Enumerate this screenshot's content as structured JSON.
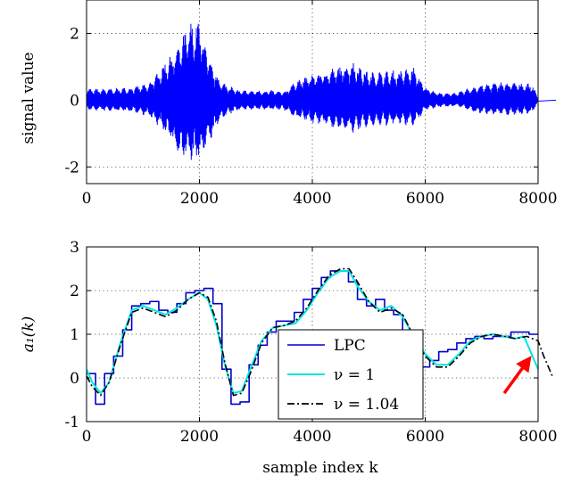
{
  "chart_data": [
    {
      "type": "line",
      "ylabel": "signal value",
      "xlim": [
        0,
        8000
      ],
      "ylim": [
        -2.5,
        3
      ],
      "xticks": [
        "0",
        "2000",
        "4000",
        "6000",
        "8000"
      ],
      "yticks": [
        "-2",
        "0",
        "2"
      ],
      "grid": true,
      "vline_x": 8000,
      "color": "#0000ff",
      "envelope": {
        "x": [
          0,
          400,
          800,
          1100,
          1400,
          1600,
          1800,
          1900,
          2000,
          2200,
          2400,
          2700,
          3000,
          3300,
          3500,
          3700,
          4000,
          4400,
          4700,
          5000,
          5500,
          5800,
          6000,
          6300,
          6600,
          6900,
          7300,
          7600,
          7900,
          8000
        ],
        "upper": [
          0.35,
          0.35,
          0.4,
          0.5,
          1.2,
          1.6,
          2.3,
          2.4,
          2.45,
          1.1,
          0.55,
          0.3,
          0.3,
          0.3,
          0.25,
          0.6,
          0.8,
          1.0,
          1.2,
          0.85,
          0.9,
          1.0,
          0.4,
          0.2,
          0.25,
          0.45,
          0.55,
          0.55,
          0.5,
          0.05
        ],
        "lower": [
          -0.3,
          -0.35,
          -0.35,
          -0.5,
          -1.0,
          -1.6,
          -1.85,
          -1.9,
          -1.9,
          -1.2,
          -0.55,
          -0.3,
          -0.3,
          -0.3,
          -0.3,
          -0.55,
          -0.7,
          -0.85,
          -1.0,
          -0.8,
          -0.75,
          -0.8,
          -0.3,
          -0.2,
          -0.2,
          -0.4,
          -0.45,
          -0.45,
          -0.4,
          -0.05
        ]
      }
    },
    {
      "type": "line",
      "ylabel": "a₁(k)",
      "xlabel": "sample index k",
      "xlim": [
        0,
        8000
      ],
      "ylim": [
        -1,
        3
      ],
      "xticks": [
        "0",
        "2000",
        "4000",
        "6000",
        "8000"
      ],
      "yticks": [
        "-1",
        "0",
        "1",
        "2",
        "3"
      ],
      "grid": true,
      "vline_x": 8000,
      "legend_location": "bottom-center",
      "annotation_arrow": {
        "from": [
          7400,
          -0.35
        ],
        "to": [
          7850,
          0.45
        ],
        "color": "#ff0000"
      },
      "series": [
        {
          "name": "LPC",
          "style": "step",
          "color": "#0000cc",
          "x": [
            0,
            160,
            320,
            480,
            640,
            800,
            960,
            1120,
            1280,
            1440,
            1600,
            1760,
            1920,
            2080,
            2240,
            2400,
            2560,
            2720,
            2880,
            3040,
            3200,
            3360,
            3520,
            3680,
            3840,
            4000,
            4160,
            4320,
            4480,
            4640,
            4800,
            4960,
            5120,
            5280,
            5440,
            5600,
            5760,
            5920,
            6080,
            6240,
            6400,
            6560,
            6720,
            6880,
            7040,
            7200,
            7360,
            7520,
            7680,
            7840,
            8000
          ],
          "y": [
            0.1,
            -0.6,
            0.1,
            0.5,
            1.1,
            1.65,
            1.7,
            1.75,
            1.55,
            1.5,
            1.7,
            1.95,
            2.0,
            2.05,
            1.7,
            0.2,
            -0.6,
            -0.55,
            0.3,
            0.75,
            1.05,
            1.3,
            1.3,
            1.5,
            1.8,
            2.05,
            2.3,
            2.45,
            2.45,
            2.2,
            1.8,
            1.65,
            1.8,
            1.55,
            1.45,
            0.65,
            0.35,
            0.25,
            0.4,
            0.6,
            0.65,
            0.8,
            0.9,
            0.95,
            0.9,
            0.95,
            0.95,
            1.05,
            1.05,
            1.0,
            1.0
          ]
        },
        {
          "name": "ν = 1",
          "style": "line",
          "color": "#00e5e5",
          "x": [
            0,
            100,
            250,
            400,
            600,
            800,
            1000,
            1200,
            1400,
            1600,
            1800,
            2000,
            2150,
            2300,
            2450,
            2600,
            2750,
            2900,
            3100,
            3300,
            3500,
            3700,
            3900,
            4100,
            4300,
            4500,
            4650,
            4800,
            5000,
            5200,
            5400,
            5600,
            5800,
            6000,
            6200,
            6400,
            6600,
            6800,
            7000,
            7200,
            7400,
            7600,
            7750,
            7900,
            8000
          ],
          "y": [
            0.2,
            -0.1,
            -0.35,
            -0.1,
            0.8,
            1.55,
            1.65,
            1.55,
            1.45,
            1.6,
            1.8,
            1.95,
            1.8,
            1.2,
            0.3,
            -0.35,
            -0.3,
            0.2,
            0.85,
            1.15,
            1.2,
            1.25,
            1.55,
            1.95,
            2.3,
            2.45,
            2.45,
            2.1,
            1.75,
            1.55,
            1.65,
            1.4,
            0.95,
            0.55,
            0.3,
            0.3,
            0.55,
            0.85,
            0.95,
            1.0,
            0.95,
            0.9,
            0.95,
            0.5,
            0.2
          ]
        },
        {
          "name": "ν = 1.04",
          "style": "dashdot",
          "color": "#000000",
          "x": [
            0,
            100,
            250,
            400,
            600,
            800,
            1000,
            1200,
            1400,
            1600,
            1800,
            2000,
            2150,
            2300,
            2450,
            2600,
            2750,
            2900,
            3100,
            3300,
            3500,
            3700,
            3900,
            4100,
            4300,
            4500,
            4650,
            4800,
            5000,
            5200,
            5400,
            5600,
            5800,
            6000,
            6200,
            6400,
            6600,
            6800,
            7000,
            7200,
            7400,
            7600,
            7800,
            8000,
            8100,
            8250
          ],
          "y": [
            0.05,
            -0.2,
            -0.4,
            -0.1,
            0.75,
            1.5,
            1.6,
            1.5,
            1.4,
            1.55,
            1.8,
            1.95,
            1.85,
            1.3,
            0.35,
            -0.4,
            -0.35,
            0.1,
            0.8,
            1.15,
            1.2,
            1.3,
            1.6,
            2.0,
            2.35,
            2.5,
            2.5,
            2.2,
            1.75,
            1.5,
            1.6,
            1.45,
            0.95,
            0.5,
            0.25,
            0.25,
            0.5,
            0.8,
            0.95,
            1.0,
            0.95,
            0.9,
            0.95,
            0.85,
            0.5,
            0.05
          ]
        }
      ]
    }
  ]
}
